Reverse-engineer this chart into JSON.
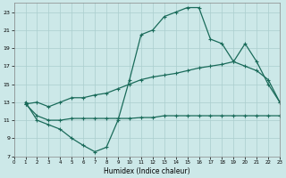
{
  "xlabel": "Humidex (Indice chaleur)",
  "background_color": "#cce8e8",
  "grid_color": "#aacece",
  "line_color": "#1a6b5a",
  "xlim": [
    0,
    23
  ],
  "ylim": [
    7,
    24
  ],
  "xticks": [
    0,
    1,
    2,
    3,
    4,
    5,
    6,
    7,
    8,
    9,
    10,
    11,
    12,
    13,
    14,
    15,
    16,
    17,
    18,
    19,
    20,
    21,
    22,
    23
  ],
  "yticks": [
    7,
    9,
    11,
    13,
    15,
    17,
    19,
    21,
    23
  ],
  "c1x": [
    1,
    2,
    3,
    4,
    5,
    6,
    7,
    8,
    9,
    10,
    11,
    12,
    13,
    14,
    15,
    16,
    17,
    18,
    19,
    20,
    21,
    22,
    23
  ],
  "c1y": [
    13.0,
    11.0,
    10.5,
    10.0,
    9.0,
    8.2,
    7.5,
    8.0,
    11.0,
    15.5,
    20.5,
    21.0,
    22.5,
    23.0,
    23.5,
    23.5,
    20.0,
    19.5,
    17.5,
    17.0,
    16.5,
    15.5,
    13.0
  ],
  "c2x": [
    1,
    2,
    3,
    4,
    5,
    6,
    7,
    8,
    9,
    10,
    11,
    12,
    13,
    14,
    15,
    16,
    17,
    18,
    19,
    20,
    21,
    22,
    23
  ],
  "c2y": [
    12.8,
    13.0,
    12.5,
    13.0,
    13.5,
    13.5,
    13.8,
    14.0,
    14.5,
    15.0,
    15.5,
    15.8,
    16.0,
    16.2,
    16.5,
    16.8,
    17.0,
    17.2,
    17.5,
    19.5,
    17.5,
    15.0,
    13.0
  ],
  "c3x": [
    1,
    2,
    3,
    4,
    5,
    6,
    7,
    8,
    9,
    10,
    11,
    12,
    13,
    14,
    15,
    16,
    17,
    18,
    19,
    20,
    21,
    22,
    23
  ],
  "c3y": [
    12.8,
    11.5,
    11.0,
    11.0,
    11.2,
    11.2,
    11.2,
    11.2,
    11.2,
    11.2,
    11.3,
    11.3,
    11.5,
    11.5,
    11.5,
    11.5,
    11.5,
    11.5,
    11.5,
    11.5,
    11.5,
    11.5,
    11.5
  ]
}
